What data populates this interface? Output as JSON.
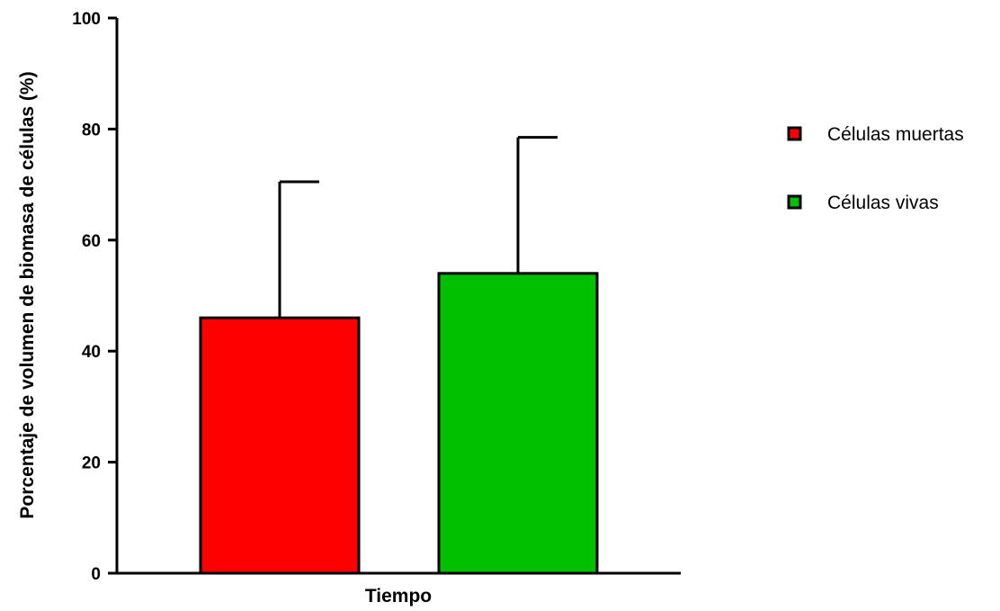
{
  "chart_data": {
    "type": "bar",
    "xlabel": "Tiempo",
    "ylabel": "Porcentaje de volumen de biomasa de células (%)",
    "ylim": [
      0,
      100
    ],
    "yticks": [
      0,
      20,
      40,
      60,
      80,
      100
    ],
    "grid": false,
    "legend_position": "right",
    "series": [
      {
        "name": "Células muertas",
        "value": 46,
        "error": 24.5,
        "color": "#ff0000"
      },
      {
        "name": "Células vivas",
        "value": 54,
        "error": 24.5,
        "color": "#00c000"
      }
    ]
  }
}
